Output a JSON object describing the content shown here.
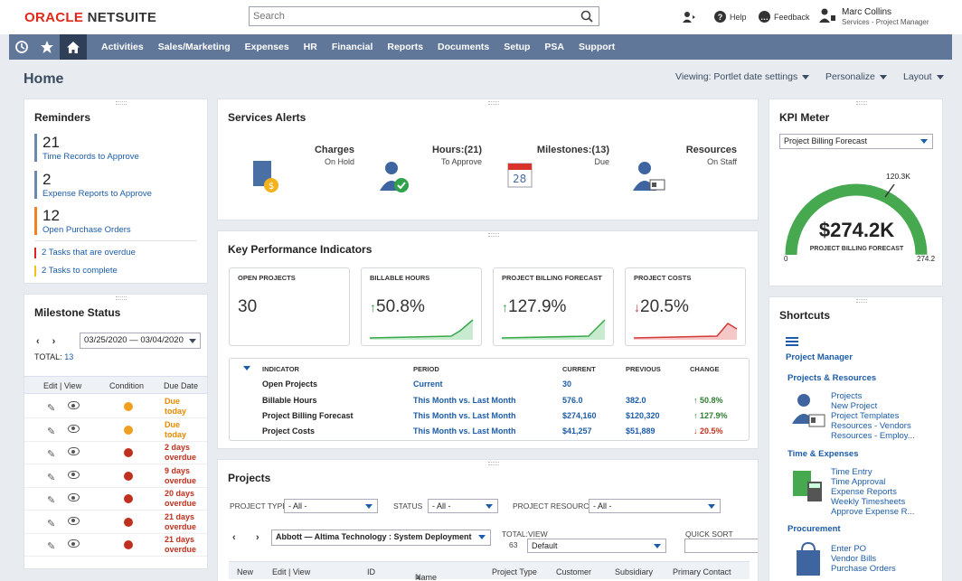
{
  "brand": {
    "oracle": "ORACLE",
    "netsuite": "NETSUITE"
  },
  "search": {
    "placeholder": "Search"
  },
  "topbar": {
    "help": "Help",
    "feedback": "Feedback",
    "user_name": "Marc Collins",
    "user_role": "Services - Project Manager"
  },
  "nav": {
    "items": [
      "Activities",
      "Sales/Marketing",
      "Expenses",
      "HR",
      "Financial",
      "Reports",
      "Documents",
      "Setup",
      "PSA",
      "Support"
    ]
  },
  "page": {
    "title": "Home",
    "viewing": "Viewing: Portlet date settings",
    "personalize": "Personalize",
    "layout": "Layout"
  },
  "reminders": {
    "title": "Reminders",
    "items": [
      {
        "count": "21",
        "label": "Time Records to Approve"
      },
      {
        "count": "2",
        "label": "Expense Reports to Approve"
      },
      {
        "count": "12",
        "label": "Open Purchase Orders"
      }
    ],
    "small": [
      {
        "label": "2 Tasks that are overdue"
      },
      {
        "label": "2 Tasks to complete"
      }
    ]
  },
  "milestone": {
    "title": "Milestone Status",
    "date_range": "03/25/2020 — 03/04/2020",
    "total_label": "TOTAL:",
    "total_value": "13",
    "headers": {
      "edit_view": "Edit | View",
      "condition": "Condition",
      "due_date": "Due Date"
    },
    "rows": [
      {
        "due": [
          "Due",
          "today"
        ],
        "color": "#f0a020",
        "due_color": "#e88a00"
      },
      {
        "due": [
          "Due",
          "today"
        ],
        "color": "#f0a020",
        "due_color": "#e88a00"
      },
      {
        "due": [
          "2 days",
          "overdue"
        ],
        "color": "#c0301e",
        "due_color": "#c0301e"
      },
      {
        "due": [
          "9 days",
          "overdue"
        ],
        "color": "#c0301e",
        "due_color": "#c0301e"
      },
      {
        "due": [
          "20 days",
          "overdue"
        ],
        "color": "#c0301e",
        "due_color": "#c0301e"
      },
      {
        "due": [
          "21 days",
          "overdue"
        ],
        "color": "#c0301e",
        "due_color": "#c0301e"
      },
      {
        "due": [
          "21 days",
          "overdue"
        ],
        "color": "#c0301e",
        "due_color": "#c0301e"
      }
    ]
  },
  "alerts": {
    "title": "Services Alerts",
    "tiles": [
      {
        "title": "Charges",
        "sub": "On Hold",
        "bg": "#bcdde9",
        "icon": "document-coin-icon"
      },
      {
        "title": "Hours:(21)",
        "sub": "To Approve",
        "bg": "#f7d8c9",
        "icon": "person-check-icon"
      },
      {
        "title": "Milestones:(13)",
        "sub": "Due",
        "bg": "#dde8d3",
        "icon": "calendar-icon"
      },
      {
        "title": "Resources",
        "sub": "On Staff",
        "bg": "#f6ecb1",
        "icon": "person-card-icon"
      }
    ]
  },
  "kpi": {
    "title": "Key Performance Indicators",
    "cards": [
      {
        "title": "OPEN PROJECTS",
        "value": "30",
        "arrow": "",
        "trend": "none"
      },
      {
        "title": "BILLABLE HOURS",
        "value": "50.8%",
        "arrow": "↑",
        "trend": "up"
      },
      {
        "title": "PROJECT BILLING FORECAST",
        "value": "127.9%",
        "arrow": "↑",
        "trend": "up"
      },
      {
        "title": "PROJECT COSTS",
        "value": "20.5%",
        "arrow": "↓",
        "trend": "down"
      }
    ],
    "table_headers": {
      "indicator": "INDICATOR",
      "period": "PERIOD",
      "current": "CURRENT",
      "previous": "PREVIOUS",
      "change": "CHANGE"
    },
    "rows": [
      {
        "indicator": "Open Projects",
        "period": "Current",
        "current": "30",
        "previous": "",
        "change": ""
      },
      {
        "indicator": "Billable Hours",
        "period": "This Month vs. Last Month",
        "current": "576.0",
        "previous": "382.0",
        "change": "↑ 50.8%"
      },
      {
        "indicator": "Project Billing Forecast",
        "period": "This Month vs. Last Month",
        "current": "$274,160",
        "previous": "$120,320",
        "change": "↑ 127.9%"
      },
      {
        "indicator": "Project Costs",
        "period": "This Month vs. Last Month",
        "current": "$41,257",
        "previous": "$51,889",
        "change": "↓ 20.5%"
      }
    ]
  },
  "projects": {
    "title": "Projects",
    "project_type_label": "PROJECT TYPE",
    "project_type_value": "- All -",
    "status_label": "STATUS",
    "status_value": "- All -",
    "resource_label": "PROJECT RESOURCE",
    "resource_value": "- All -",
    "project_select": "Abbott — Altima Technology : System Deployment",
    "total_label": "TOTAL:",
    "total_value": "63",
    "view_label": "VIEW",
    "view_value": "Default",
    "quick_sort_label": "QUICK SORT",
    "columns": [
      "New",
      "Edit | View",
      "ID",
      "Name",
      "Project Type",
      "Customer",
      "Subsidiary",
      "Primary Contact"
    ]
  },
  "kpi_meter": {
    "title": "KPI Meter",
    "select": "Project Billing Forecast",
    "value": "$274.2K",
    "label": "PROJECT BILLING FORECAST",
    "min": "0",
    "max": "274.2",
    "marker": "120.3K",
    "level": 1.0
  },
  "shortcuts": {
    "title": "Shortcuts",
    "project_manager": "Project Manager",
    "groups": [
      {
        "heading": "Projects & Resources",
        "links": [
          "Projects",
          "New Project",
          "Project Templates",
          "Resources - Vendors",
          "Resources - Employ..."
        ]
      },
      {
        "heading": "Time & Expenses",
        "links": [
          "Time Entry",
          "Time Approval",
          "Expense Reports",
          "Weekly Timesheets",
          "Approve Expense R..."
        ]
      },
      {
        "heading": "Procurement",
        "links": [
          "Enter PO",
          "Vendor Bills",
          "Purchase Orders"
        ]
      }
    ]
  }
}
